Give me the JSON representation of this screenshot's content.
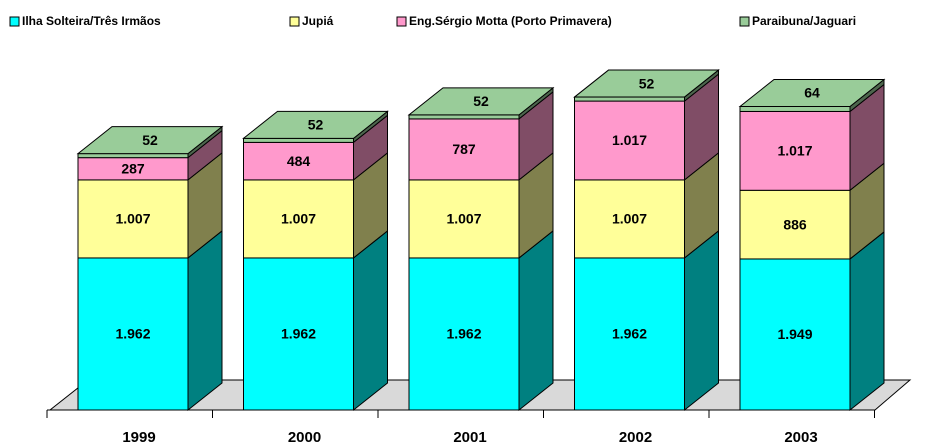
{
  "chart_data": {
    "type": "bar",
    "stacked": true,
    "three_d": true,
    "categories": [
      "1999",
      "2000",
      "2001",
      "2002",
      "2003"
    ],
    "series": [
      {
        "name": "Ilha Solteira/Três Irmãos",
        "color": "#00FFFF",
        "values": [
          1962,
          1962,
          1962,
          1962,
          1949
        ],
        "value_labels": [
          "1.962",
          "1.962",
          "1.962",
          "1.962",
          "1.949"
        ]
      },
      {
        "name": "Jupiá",
        "color": "#FFFF99",
        "values": [
          1007,
          1007,
          1007,
          1007,
          886
        ],
        "value_labels": [
          "1.007",
          "1.007",
          "1.007",
          "1.007",
          "886"
        ]
      },
      {
        "name": "Eng.Sérgio Motta (Porto Primavera)",
        "color": "#FF99CC",
        "values": [
          287,
          484,
          787,
          1017,
          1017
        ],
        "value_labels": [
          "287",
          "484",
          "787",
          "1.017",
          "1.017"
        ]
      },
      {
        "name": "Paraibuna/Jaguari",
        "color": "#99CC99",
        "values": [
          52,
          52,
          52,
          52,
          64
        ]
      }
    ]
  }
}
